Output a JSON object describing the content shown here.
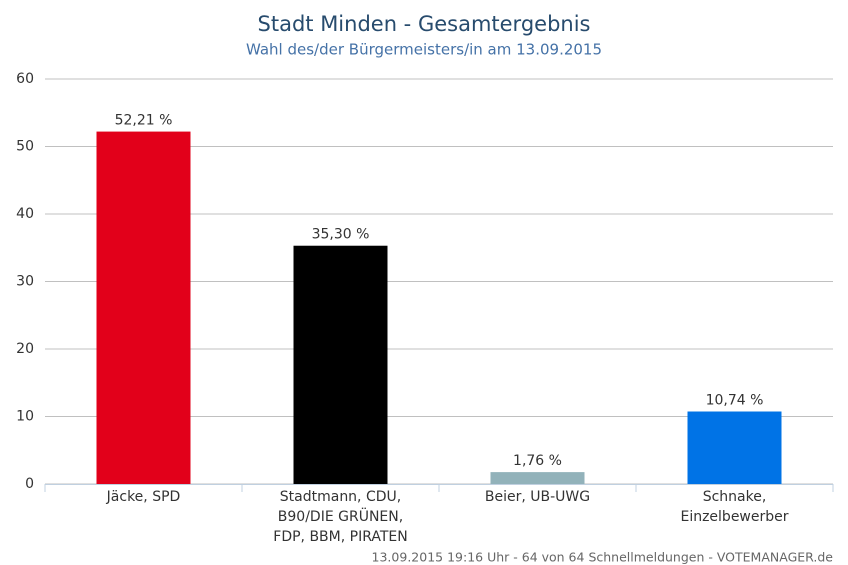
{
  "chart_data": {
    "type": "bar",
    "title": "Stadt Minden - Gesamtergebnis",
    "subtitle": "Wahl des/der Bürgermeisters/in am 13.09.2015",
    "categories": [
      "Jäcke, SPD",
      "Stadtmann, CDU,\nB90/DIE GRÜNEN,\nFDP, BBM, PIRATEN",
      "Beier, UB-UWG",
      "Schnake,\nEinzelbewerber"
    ],
    "values": [
      52.21,
      35.3,
      1.76,
      10.74
    ],
    "value_labels": [
      "52,21 %",
      "35,30 %",
      "1,76 %",
      "10,74 %"
    ],
    "colors": [
      "#e2001a",
      "#000000",
      "#92b2ba",
      "#0073e6"
    ],
    "ylim": [
      0,
      60
    ],
    "yticks": [
      0,
      10,
      20,
      30,
      40,
      50,
      60
    ],
    "grid": true,
    "footer": "13.09.2015 19:16 Uhr - 64 von 64 Schnellmeldungen - VOTEMANAGER.de"
  }
}
